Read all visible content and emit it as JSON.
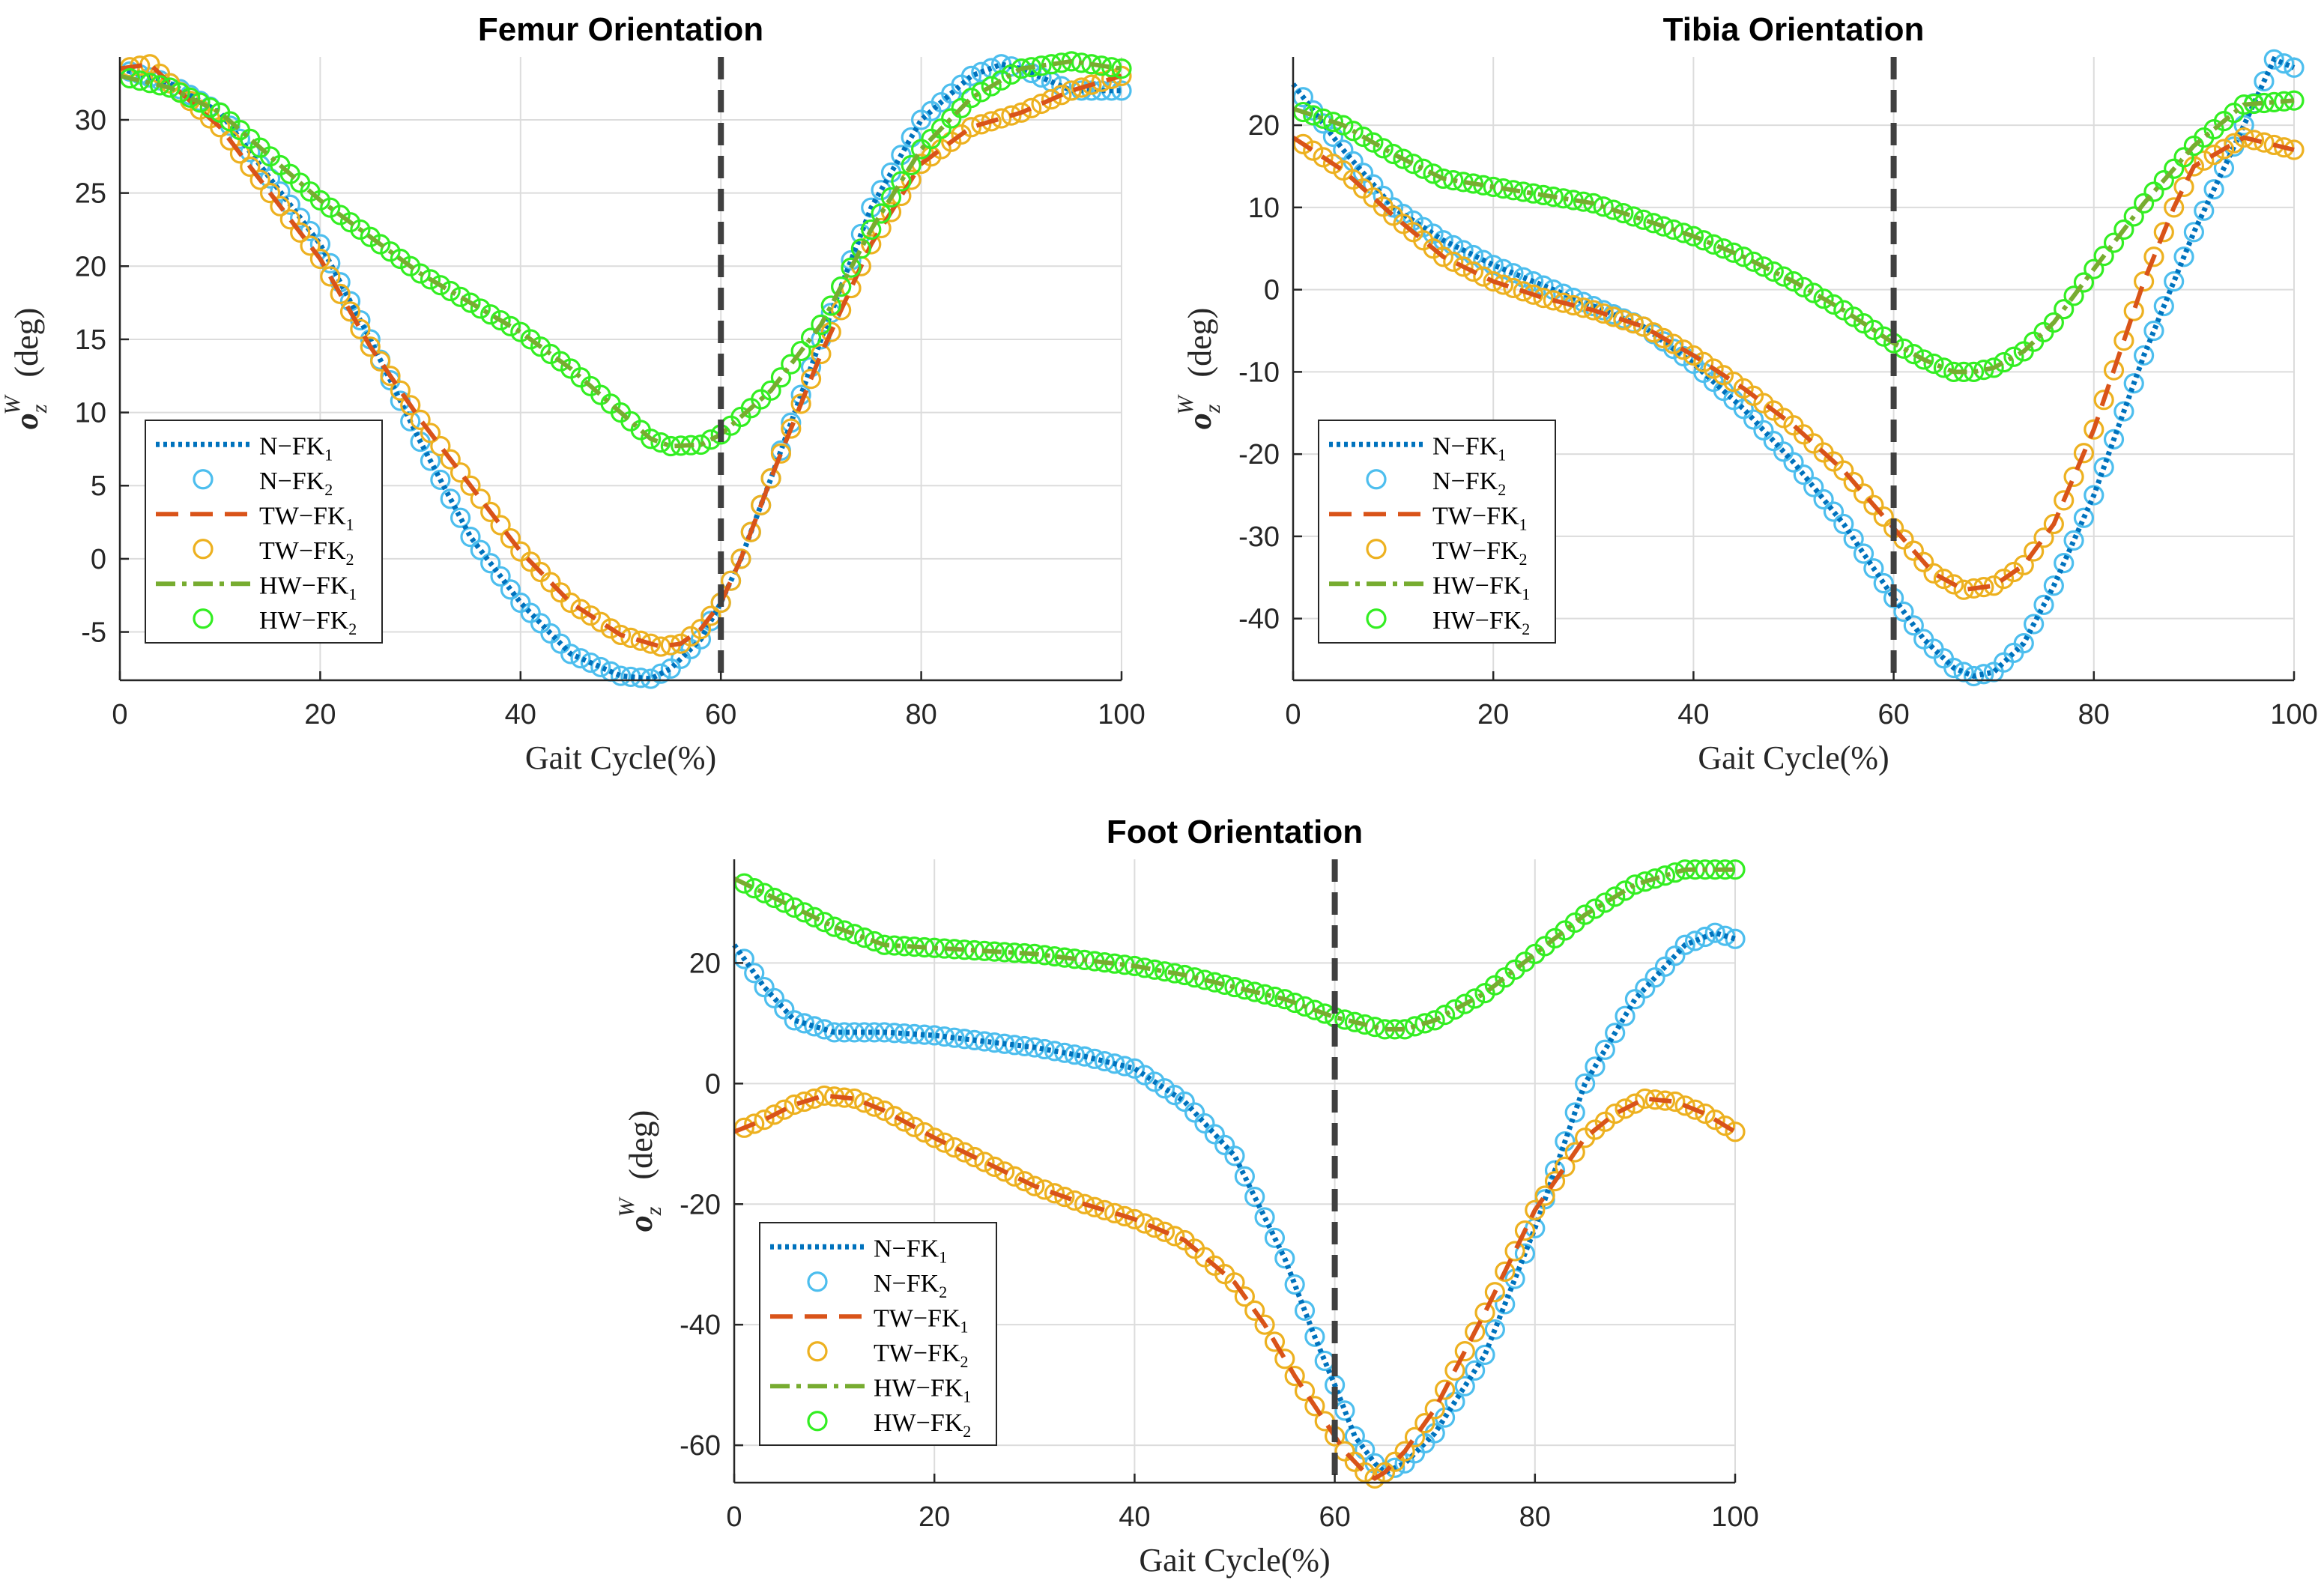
{
  "colors": {
    "n_fk1": "#0072BD",
    "n_fk2": "#4DBEEE",
    "tw_fk1": "#D95319",
    "tw_fk2": "#EDB120",
    "hw_fk1": "#77AC30",
    "hw_fk2": "#33EE22",
    "vline": "#404040",
    "grid": "#dcdcdc"
  },
  "legend": [
    {
      "key": "n_fk1",
      "base": "N−FK",
      "sub": "1",
      "style": "dotted"
    },
    {
      "key": "n_fk2",
      "base": "N−FK",
      "sub": "2",
      "style": "circle"
    },
    {
      "key": "tw_fk1",
      "base": "TW−FK",
      "sub": "1",
      "style": "dashed"
    },
    {
      "key": "tw_fk2",
      "base": "TW−FK",
      "sub": "2",
      "style": "circle"
    },
    {
      "key": "hw_fk1",
      "base": "HW−FK",
      "sub": "1",
      "style": "dashdot"
    },
    {
      "key": "hw_fk2",
      "base": "HW−FK",
      "sub": "2",
      "style": "circle"
    }
  ],
  "chart_data": [
    {
      "type": "line",
      "title": "Femur Orientation",
      "xlabel": "Gait Cycle(%)",
      "ylabel": {
        "base": "o",
        "sub": "z",
        "sup": "W",
        "unit": "(deg)"
      },
      "xlim": [
        0,
        100
      ],
      "ylim": [
        -8.3,
        34.3
      ],
      "xticks": [
        0,
        20,
        40,
        60,
        80,
        100
      ],
      "yticks": [
        -5,
        0,
        5,
        10,
        15,
        20,
        25,
        30
      ],
      "vline": 60,
      "grid": true,
      "legend_position": "bottom-left",
      "series": [
        {
          "key": "n",
          "x": [
            0,
            5,
            10,
            15,
            20,
            25,
            30,
            35,
            40,
            45,
            50,
            53,
            55,
            58,
            60,
            62,
            65,
            70,
            75,
            80,
            85,
            88,
            90,
            95,
            100
          ],
          "values": [
            33.5,
            32.5,
            30.5,
            26.0,
            21.5,
            15.0,
            8.0,
            1.5,
            -3.0,
            -6.5,
            -8.0,
            -8.2,
            -7.5,
            -5.5,
            -3.0,
            0,
            5.5,
            15.0,
            24.0,
            30.0,
            33.0,
            33.8,
            33.5,
            32.0,
            32.0
          ]
        },
        {
          "key": "tw",
          "x": [
            0,
            3,
            5,
            10,
            15,
            20,
            25,
            30,
            35,
            40,
            45,
            50,
            54,
            56,
            58,
            60,
            62,
            65,
            70,
            75,
            80,
            85,
            90,
            95,
            100
          ],
          "values": [
            33.5,
            33.8,
            32.5,
            29.5,
            25.0,
            20.5,
            14.5,
            9.5,
            5.0,
            0.5,
            -3.0,
            -5.2,
            -6.0,
            -5.8,
            -4.8,
            -3.0,
            0,
            5.5,
            14.0,
            21.5,
            27.0,
            29.5,
            30.5,
            32.0,
            33.0
          ]
        },
        {
          "key": "hw",
          "x": [
            0,
            5,
            10,
            15,
            20,
            25,
            30,
            35,
            40,
            45,
            50,
            53,
            55,
            58,
            60,
            65,
            70,
            75,
            80,
            85,
            90,
            95,
            100
          ],
          "values": [
            33.0,
            32.2,
            30.5,
            27.5,
            24.5,
            22.0,
            19.5,
            17.5,
            15.5,
            13.0,
            10.0,
            8.2,
            7.7,
            7.8,
            8.5,
            11.5,
            16.0,
            22.5,
            28.0,
            31.5,
            33.5,
            34.0,
            33.5
          ]
        }
      ]
    },
    {
      "type": "line",
      "title": "Tibia Orientation",
      "xlabel": "Gait Cycle(%)",
      "ylabel": {
        "base": "o",
        "sub": "z",
        "sup": "W",
        "unit": "(deg)"
      },
      "xlim": [
        0,
        100
      ],
      "ylim": [
        -47.5,
        28.3
      ],
      "xticks": [
        0,
        20,
        40,
        60,
        80,
        100
      ],
      "yticks": [
        -40,
        -30,
        -20,
        -10,
        0,
        10,
        20
      ],
      "vline": 60,
      "grid": true,
      "legend_position": "bottom-left",
      "series": [
        {
          "key": "n",
          "x": [
            0,
            5,
            10,
            15,
            20,
            25,
            30,
            35,
            40,
            45,
            50,
            55,
            60,
            63,
            66,
            68,
            70,
            73,
            76,
            80,
            85,
            90,
            95,
            98,
            100
          ],
          "values": [
            25.0,
            17.0,
            10.0,
            6.0,
            3.0,
            0.5,
            -2.0,
            -4.5,
            -9.0,
            -14.5,
            -21.0,
            -28.5,
            -37.5,
            -42.5,
            -46.0,
            -47.0,
            -46.5,
            -43.0,
            -36.0,
            -25.0,
            -8.0,
            7.0,
            20.0,
            28.0,
            27.0
          ]
        },
        {
          "key": "tw",
          "x": [
            0,
            5,
            10,
            15,
            20,
            25,
            30,
            35,
            40,
            45,
            50,
            55,
            60,
            64,
            67,
            70,
            73,
            76,
            80,
            85,
            88,
            90,
            95,
            100
          ],
          "values": [
            18.5,
            14.5,
            9.0,
            4.0,
            1.0,
            -1.0,
            -2.5,
            -4.5,
            -8.0,
            -12.0,
            -16.5,
            -22.0,
            -29.0,
            -34.5,
            -36.5,
            -36.0,
            -33.5,
            -28.5,
            -17.0,
            1.0,
            10.0,
            15.0,
            18.5,
            17.0
          ]
        },
        {
          "key": "hw",
          "x": [
            0,
            5,
            10,
            15,
            20,
            25,
            30,
            35,
            40,
            45,
            50,
            55,
            60,
            63,
            66,
            68,
            70,
            73,
            76,
            80,
            85,
            90,
            95,
            100
          ],
          "values": [
            22.0,
            20.0,
            16.5,
            13.5,
            12.5,
            11.5,
            10.5,
            8.5,
            6.5,
            4.0,
            1.0,
            -2.5,
            -6.5,
            -8.5,
            -10.0,
            -10.0,
            -9.5,
            -7.5,
            -4.0,
            2.5,
            10.5,
            17.5,
            22.5,
            23.0
          ]
        }
      ]
    },
    {
      "type": "line",
      "title": "Foot Orientation",
      "xlabel": "Gait Cycle(%)",
      "ylabel": {
        "base": "o",
        "sub": "z",
        "sup": "W",
        "unit": "(deg)"
      },
      "xlim": [
        0,
        100
      ],
      "ylim": [
        -66.2,
        37.2
      ],
      "xticks": [
        0,
        20,
        40,
        60,
        80,
        100
      ],
      "yticks": [
        -60,
        -40,
        -20,
        0,
        20
      ],
      "vline": 60,
      "grid": true,
      "legend_position": "bottom-left",
      "series": [
        {
          "key": "n",
          "x": [
            0,
            3,
            6,
            10,
            15,
            20,
            25,
            30,
            35,
            40,
            45,
            50,
            55,
            58,
            60,
            62,
            64,
            65,
            67,
            70,
            75,
            80,
            85,
            90,
            95,
            98,
            100
          ],
          "values": [
            23.0,
            16.0,
            10.5,
            8.5,
            8.5,
            8.0,
            7.0,
            6.0,
            4.5,
            2.5,
            -3.0,
            -12.0,
            -29.0,
            -42.0,
            -50.0,
            -58.5,
            -63.0,
            -64.5,
            -63.0,
            -58.0,
            -45.0,
            -24.0,
            0,
            14.0,
            23.0,
            25.0,
            24.0
          ]
        },
        {
          "key": "tw",
          "x": [
            0,
            3,
            6,
            9,
            12,
            15,
            20,
            25,
            30,
            35,
            40,
            45,
            50,
            53,
            56,
            59,
            61,
            63,
            64,
            65,
            67,
            70,
            75,
            80,
            85,
            88,
            91,
            94,
            97,
            100
          ],
          "values": [
            -8.0,
            -6.0,
            -3.5,
            -2.0,
            -2.5,
            -4.5,
            -9.0,
            -13.0,
            -17.0,
            -20.0,
            -22.5,
            -26.0,
            -33.0,
            -40.0,
            -48.5,
            -56.0,
            -61.0,
            -64.5,
            -65.5,
            -64.5,
            -61.0,
            -54.0,
            -38.0,
            -21.0,
            -9.0,
            -5.0,
            -2.5,
            -3.0,
            -5.0,
            -8.0
          ]
        },
        {
          "key": "hw",
          "x": [
            0,
            5,
            10,
            15,
            20,
            25,
            30,
            35,
            40,
            45,
            50,
            55,
            60,
            65,
            67,
            70,
            75,
            80,
            85,
            90,
            95,
            100
          ],
          "values": [
            34.0,
            30.0,
            26.0,
            23.0,
            22.5,
            22.0,
            21.5,
            20.5,
            19.5,
            18.0,
            16.0,
            14.0,
            11.0,
            9.0,
            9.0,
            10.5,
            15.0,
            21.5,
            28.0,
            33.0,
            35.5,
            35.5
          ]
        }
      ]
    }
  ]
}
